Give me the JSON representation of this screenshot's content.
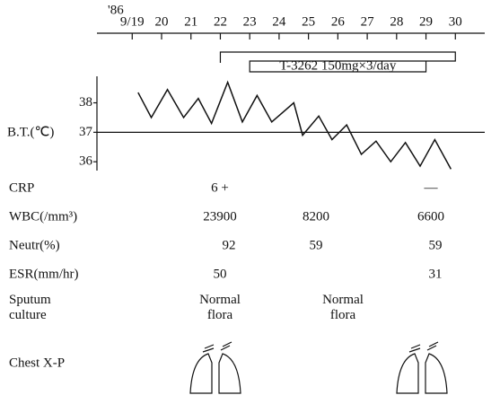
{
  "chart_data": {
    "type": "line",
    "year_label": "'86",
    "y_label": "B.T.(℃)",
    "x": [
      19.2,
      19.65,
      20.2,
      20.75,
      21.25,
      21.7,
      22.25,
      22.75,
      23.25,
      23.75,
      24.5,
      24.8,
      25.35,
      25.8,
      26.3,
      26.8,
      27.3,
      27.8,
      28.3,
      28.8,
      29.3,
      29.85
    ],
    "values": [
      38.35,
      37.5,
      38.45,
      37.5,
      38.15,
      37.3,
      38.7,
      37.35,
      38.25,
      37.35,
      38.0,
      36.9,
      37.55,
      36.75,
      37.25,
      36.25,
      36.7,
      36.0,
      36.65,
      35.85,
      36.75,
      35.75
    ],
    "color": "#111111",
    "xlim": [
      17.8,
      31
    ],
    "xticks": [
      {
        "value": 19,
        "label": "9/19"
      },
      20,
      21,
      22,
      23,
      24,
      25,
      26,
      27,
      28,
      29,
      30
    ],
    "ylim": [
      35.7,
      38.9
    ],
    "yticks": [
      36,
      37,
      38
    ],
    "reference": 37,
    "treatment": {
      "label": "T-3262  150mg×3/day",
      "start": 22,
      "end": 30
    }
  },
  "table": {
    "rows": [
      {
        "label": [
          "CRP"
        ],
        "cells": [
          "6 +",
          null,
          "—"
        ]
      },
      {
        "label": [
          "WBC(/mm³)"
        ],
        "cells": [
          23900,
          8200,
          6600
        ]
      },
      {
        "label": [
          "Neutr(%)"
        ],
        "cells": [
          92,
          59,
          59
        ]
      },
      {
        "label": [
          "ESR(mm/hr)"
        ],
        "cells": [
          50,
          null,
          31
        ]
      },
      {
        "label": [
          "Sputum",
          "culture"
        ],
        "cells": [
          [
            "Normal",
            "flora"
          ],
          [
            "Normal",
            "flora"
          ],
          null
        ]
      },
      {
        "label": [
          "Chest X-P"
        ],
        "cells": []
      }
    ]
  }
}
